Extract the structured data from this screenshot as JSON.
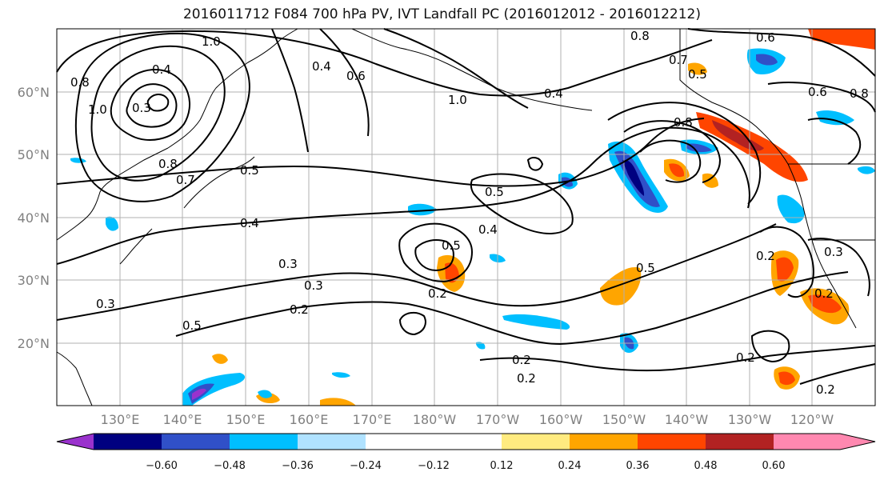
{
  "title": "2016011712 F084 700 hPa PV, IVT Landfall PC (2016012012 - 2016012212)",
  "map": {
    "lat_labels": [
      "60°N",
      "50°N",
      "40°N",
      "30°N",
      "20°N"
    ],
    "lon_labels": [
      "130°E",
      "140°E",
      "150°E",
      "160°E",
      "170°E",
      "180°W",
      "170°W",
      "160°W",
      "150°W",
      "140°W",
      "130°W",
      "120°W"
    ],
    "contour_labels": [
      "0.8",
      "1.0",
      "0.4",
      "0.6",
      "0.8",
      "0.6",
      "0.8",
      "0.7",
      "0.5",
      "0.6",
      "1.0",
      "0.4",
      "0.4",
      "0.3",
      "0.8",
      "0.7",
      "0.5",
      "0.5",
      "0.4",
      "0.4",
      "0.3",
      "0.5",
      "0.2",
      "0.3",
      "0.2",
      "0.5",
      "0.2",
      "0.2",
      "0.2",
      "0.2",
      "0.5",
      "0.3",
      "0.2",
      "0.2",
      "1.0",
      "0.8",
      "0.3"
    ]
  },
  "colorbar": {
    "ticks": [
      "−0.60",
      "−0.48",
      "−0.36",
      "−0.24",
      "−0.12",
      "0.12",
      "0.24",
      "0.36",
      "0.48",
      "0.60"
    ],
    "colors": [
      "#9a32cd",
      "#000080",
      "#3050c8",
      "#00bfff",
      "#b0e2ff",
      "#ffffff",
      "#ffeb80",
      "#ffa500",
      "#ff4500",
      "#b22222",
      "#ff88b0"
    ]
  }
}
